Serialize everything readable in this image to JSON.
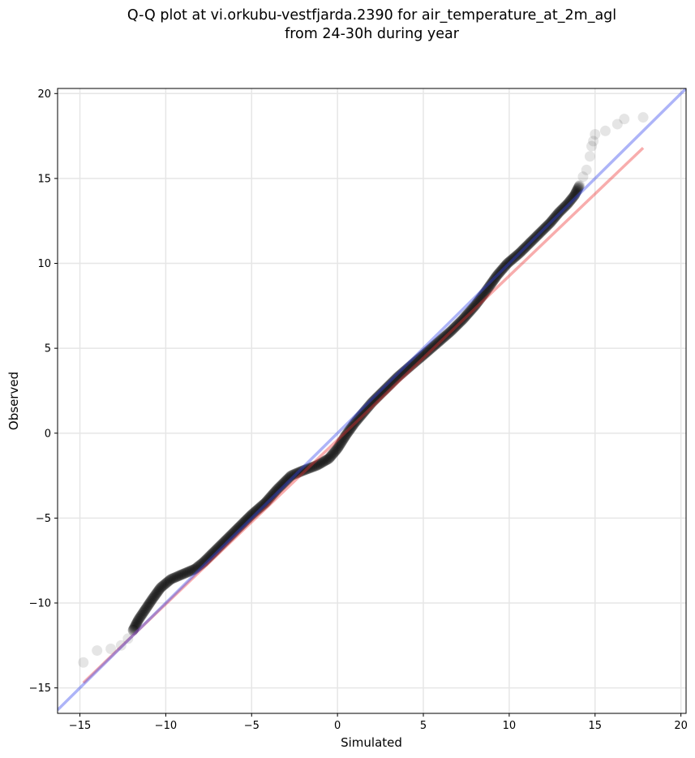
{
  "chart_data": {
    "type": "scatter",
    "title": "Q-Q plot at vi.orkubu-vestfjarda.2390 for air_temperature_at_2m_agl\nfrom 24-30h during year",
    "xlabel": "Simulated",
    "ylabel": "Observed",
    "xlim": [
      -16.3,
      20.3
    ],
    "ylim": [
      -16.5,
      20.3
    ],
    "xticks": [
      -15,
      -10,
      -5,
      0,
      5,
      10,
      15,
      20
    ],
    "yticks": [
      -15,
      -10,
      -5,
      0,
      5,
      10,
      15,
      20
    ],
    "xtick_labels": [
      "−15",
      "−10",
      "−5",
      "0",
      "5",
      "10",
      "15",
      "20"
    ],
    "ytick_labels": [
      "−15",
      "−10",
      "−5",
      "0",
      "5",
      "10",
      "15",
      "20"
    ],
    "grid": true,
    "colors": {
      "points": "#000000",
      "identity_line": "#aab0f5",
      "fit_line": "#f5a8a8"
    },
    "quantile_curve": [
      [
        -14.8,
        -13.5
      ],
      [
        -14.0,
        -12.8
      ],
      [
        -13.2,
        -12.7
      ],
      [
        -12.6,
        -12.5
      ],
      [
        -12.2,
        -12.1
      ],
      [
        -11.9,
        -11.6
      ],
      [
        -11.6,
        -11.0
      ],
      [
        -11.2,
        -10.4
      ],
      [
        -10.8,
        -9.8
      ],
      [
        -10.3,
        -9.1
      ],
      [
        -9.7,
        -8.6
      ],
      [
        -9.0,
        -8.3
      ],
      [
        -8.3,
        -8.0
      ],
      [
        -7.8,
        -7.6
      ],
      [
        -7.2,
        -7.0
      ],
      [
        -6.5,
        -6.3
      ],
      [
        -5.8,
        -5.6
      ],
      [
        -5.0,
        -4.8
      ],
      [
        -4.2,
        -4.1
      ],
      [
        -3.5,
        -3.3
      ],
      [
        -2.7,
        -2.5
      ],
      [
        -2.0,
        -2.2
      ],
      [
        -1.2,
        -1.9
      ],
      [
        -0.5,
        -1.5
      ],
      [
        0.0,
        -0.9
      ],
      [
        0.5,
        -0.1
      ],
      [
        1.0,
        0.6
      ],
      [
        1.5,
        1.2
      ],
      [
        2.0,
        1.8
      ],
      [
        2.8,
        2.6
      ],
      [
        3.5,
        3.3
      ],
      [
        4.3,
        4.0
      ],
      [
        5.0,
        4.6
      ],
      [
        5.8,
        5.3
      ],
      [
        6.6,
        6.0
      ],
      [
        7.3,
        6.7
      ],
      [
        8.0,
        7.5
      ],
      [
        8.6,
        8.3
      ],
      [
        9.3,
        9.3
      ],
      [
        9.9,
        10.0
      ],
      [
        10.6,
        10.6
      ],
      [
        11.2,
        11.2
      ],
      [
        11.8,
        11.8
      ],
      [
        12.4,
        12.4
      ],
      [
        12.9,
        13.0
      ],
      [
        13.4,
        13.5
      ],
      [
        13.8,
        14.0
      ],
      [
        14.1,
        14.6
      ],
      [
        14.3,
        15.1
      ],
      [
        14.5,
        15.5
      ],
      [
        14.7,
        16.3
      ],
      [
        14.8,
        16.9
      ],
      [
        14.9,
        17.2
      ],
      [
        15.0,
        17.6
      ],
      [
        15.6,
        17.8
      ],
      [
        16.3,
        18.2
      ],
      [
        16.7,
        18.5
      ],
      [
        17.8,
        18.6
      ]
    ],
    "identity_line": [
      [
        -16.3,
        -16.3
      ],
      [
        20.3,
        20.3
      ]
    ],
    "fit_line": [
      [
        -14.8,
        -14.7
      ],
      [
        17.8,
        16.8
      ]
    ]
  }
}
